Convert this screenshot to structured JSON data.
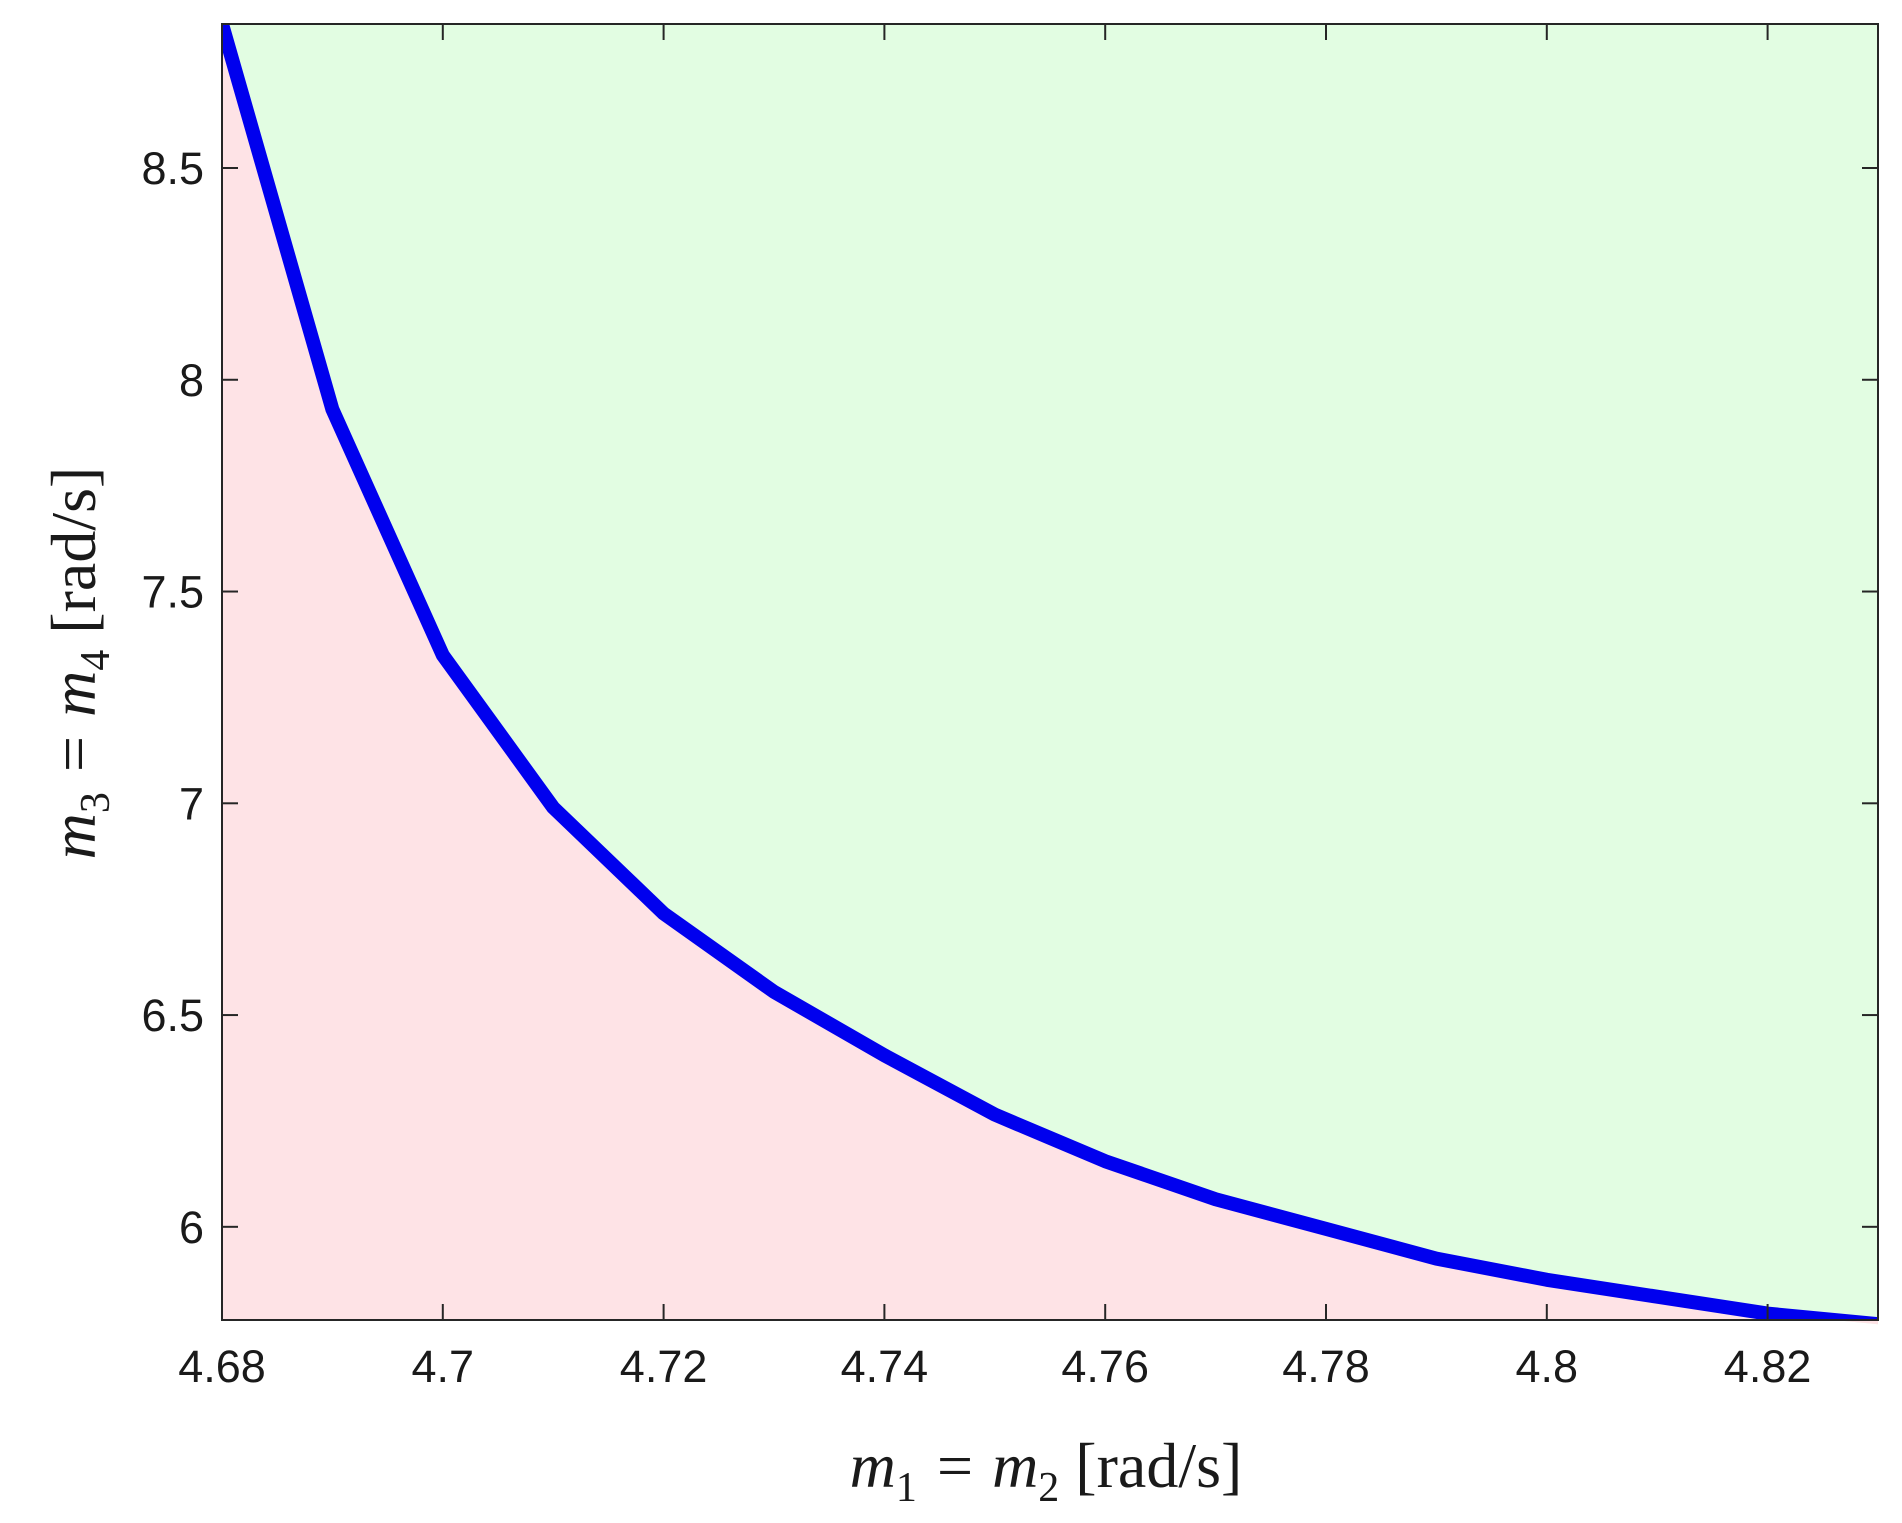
{
  "chart_data": {
    "type": "area",
    "xlabel": {
      "pre": "m",
      "sub1": "1",
      "mid": " = m",
      "sub2": "2",
      "post": " [rad/s]"
    },
    "ylabel": {
      "pre": "m",
      "sub1": "3",
      "mid": " = m",
      "sub2": "4",
      "post": " [rad/s]"
    },
    "xlim": [
      4.68,
      4.83
    ],
    "ylim": [
      5.78,
      8.84
    ],
    "xticks": [
      4.68,
      4.7,
      4.72,
      4.74,
      4.76,
      4.78,
      4.8,
      4.82
    ],
    "xtick_labels": [
      "4.68",
      "4.7",
      "4.72",
      "4.74",
      "4.76",
      "4.78",
      "4.8",
      "4.82"
    ],
    "yticks": [
      6,
      6.5,
      7,
      7.5,
      8,
      8.5
    ],
    "ytick_labels": [
      "6",
      "6.5",
      "7",
      "7.5",
      "8",
      "8.5"
    ],
    "grid": false,
    "series": [
      {
        "color": "#0000ee",
        "x": [
          4.68,
          4.69,
          4.7,
          4.71,
          4.72,
          4.73,
          4.74,
          4.75,
          4.76,
          4.77,
          4.78,
          4.79,
          4.8,
          4.81,
          4.82,
          4.83
        ],
        "y": [
          8.84,
          7.93,
          7.35,
          6.99,
          6.74,
          6.555,
          6.405,
          6.265,
          6.155,
          6.065,
          5.995,
          5.925,
          5.875,
          5.835,
          5.795,
          5.77
        ]
      }
    ],
    "regions": [
      {
        "position": "above curve",
        "color": "#e2fde2"
      },
      {
        "position": "below curve",
        "color": "#fee3e6"
      }
    ]
  }
}
